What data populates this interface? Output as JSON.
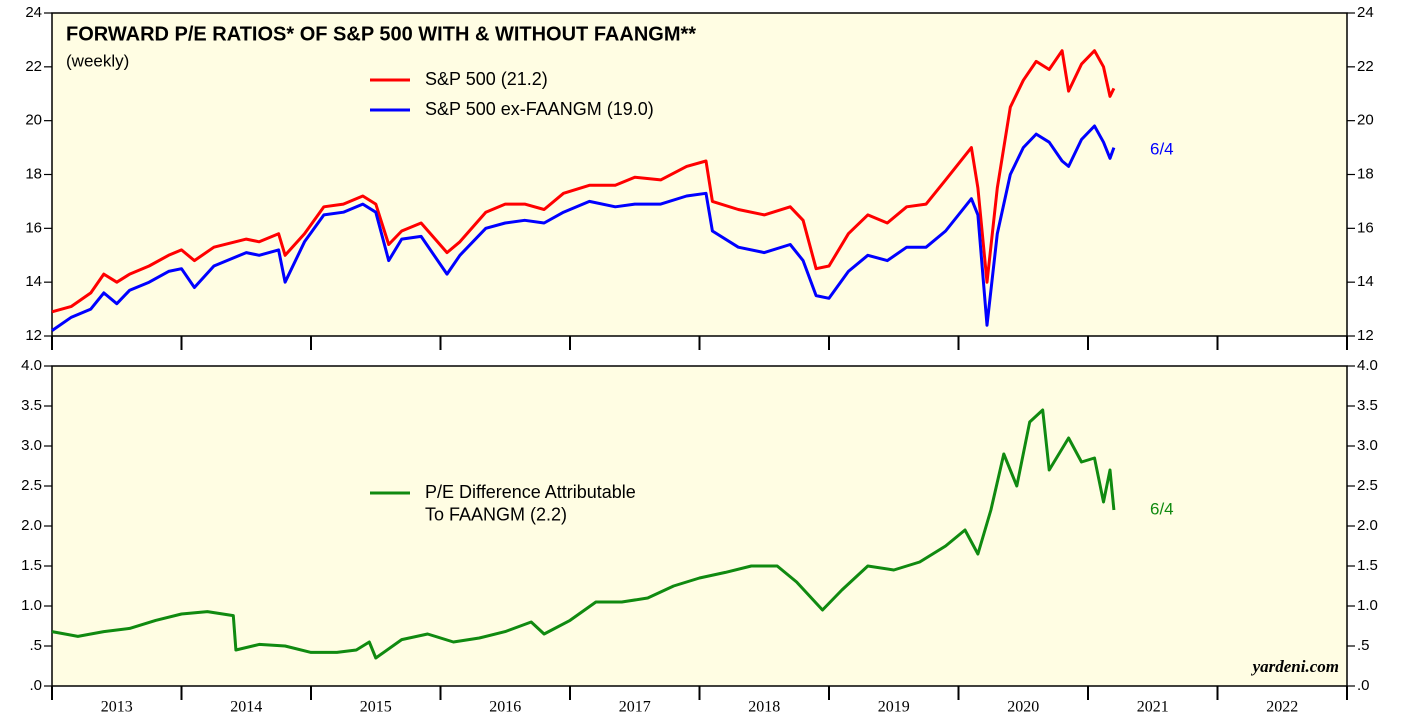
{
  "chart_data": [
    {
      "type": "line",
      "title": "FORWARD P/E RATIOS* OF S&P 500 WITH & WITHOUT FAANGM**",
      "subtitle": "(weekly)",
      "x": [
        2013.0,
        2013.15,
        2013.3,
        2013.4,
        2013.5,
        2013.6,
        2013.75,
        2013.9,
        2014.0,
        2014.1,
        2014.25,
        2014.5,
        2014.6,
        2014.75,
        2014.8,
        2014.95,
        2015.1,
        2015.25,
        2015.4,
        2015.5,
        2015.6,
        2015.7,
        2015.85,
        2016.05,
        2016.15,
        2016.35,
        2016.5,
        2016.65,
        2016.8,
        2016.95,
        2017.15,
        2017.35,
        2017.5,
        2017.7,
        2017.9,
        2018.05,
        2018.1,
        2018.3,
        2018.5,
        2018.7,
        2018.8,
        2018.9,
        2019.0,
        2019.15,
        2019.3,
        2019.45,
        2019.6,
        2019.75,
        2019.9,
        2020.1,
        2020.15,
        2020.22,
        2020.3,
        2020.4,
        2020.5,
        2020.6,
        2020.7,
        2020.8,
        2020.85,
        2020.95,
        2021.05,
        2021.12,
        2021.17,
        2021.2
      ],
      "series": [
        {
          "name": "S&P 500 (21.2)",
          "color": "#ff0000",
          "values": [
            12.9,
            13.1,
            13.6,
            14.3,
            14.0,
            14.3,
            14.6,
            15.0,
            15.2,
            14.8,
            15.3,
            15.6,
            15.5,
            15.8,
            15.0,
            15.8,
            16.8,
            16.9,
            17.2,
            16.9,
            15.4,
            15.9,
            16.2,
            15.1,
            15.5,
            16.6,
            16.9,
            16.9,
            16.7,
            17.3,
            17.6,
            17.6,
            17.9,
            17.8,
            18.3,
            18.5,
            17.0,
            16.7,
            16.5,
            16.8,
            16.3,
            14.5,
            14.6,
            15.8,
            16.5,
            16.2,
            16.8,
            16.9,
            17.8,
            19.0,
            17.5,
            14.0,
            17.5,
            20.5,
            21.5,
            22.2,
            21.9,
            22.6,
            21.1,
            22.1,
            22.6,
            22.0,
            20.9,
            21.2
          ]
        },
        {
          "name": "S&P 500 ex-FAANGM (19.0)",
          "color": "#0000ff",
          "values": [
            12.2,
            12.7,
            13.0,
            13.6,
            13.2,
            13.7,
            14.0,
            14.4,
            14.5,
            13.8,
            14.6,
            15.1,
            15.0,
            15.2,
            14.0,
            15.5,
            16.5,
            16.6,
            16.9,
            16.6,
            14.8,
            15.6,
            15.7,
            14.3,
            15.0,
            16.0,
            16.2,
            16.3,
            16.2,
            16.6,
            17.0,
            16.8,
            16.9,
            16.9,
            17.2,
            17.3,
            15.9,
            15.3,
            15.1,
            15.4,
            14.8,
            13.5,
            13.4,
            14.4,
            15.0,
            14.8,
            15.3,
            15.3,
            15.9,
            17.1,
            16.5,
            12.4,
            15.8,
            18.0,
            19.0,
            19.5,
            19.2,
            18.5,
            18.3,
            19.3,
            19.8,
            19.2,
            18.6,
            19.0
          ]
        }
      ],
      "annotation": "6/4",
      "xlim": [
        2013,
        2023
      ],
      "xticks": [
        2013,
        2014,
        2015,
        2016,
        2017,
        2018,
        2019,
        2020,
        2021,
        2022,
        2023
      ],
      "ylim": [
        12,
        24
      ],
      "yticks": [
        12,
        14,
        16,
        18,
        20,
        22,
        24
      ],
      "background": "#fffde3"
    },
    {
      "type": "line",
      "x": [
        2013.0,
        2013.2,
        2013.4,
        2013.6,
        2013.8,
        2014.0,
        2014.2,
        2014.4,
        2014.42,
        2014.6,
        2014.8,
        2015.0,
        2015.2,
        2015.35,
        2015.45,
        2015.5,
        2015.7,
        2015.9,
        2016.1,
        2016.3,
        2016.5,
        2016.7,
        2016.8,
        2017.0,
        2017.2,
        2017.4,
        2017.6,
        2017.8,
        2018.0,
        2018.2,
        2018.4,
        2018.6,
        2018.75,
        2018.95,
        2019.1,
        2019.3,
        2019.5,
        2019.7,
        2019.9,
        2020.05,
        2020.15,
        2020.25,
        2020.35,
        2020.45,
        2020.55,
        2020.65,
        2020.7,
        2020.85,
        2020.95,
        2021.05,
        2021.12,
        2021.17,
        2021.2
      ],
      "series": [
        {
          "name": "P/E Difference Attributable\nTo FAANGM (2.2)",
          "color": "#108a10",
          "values": [
            0.68,
            0.62,
            0.68,
            0.72,
            0.82,
            0.9,
            0.93,
            0.88,
            0.45,
            0.52,
            0.5,
            0.42,
            0.42,
            0.45,
            0.55,
            0.35,
            0.58,
            0.65,
            0.55,
            0.6,
            0.68,
            0.8,
            0.65,
            0.82,
            1.05,
            1.05,
            1.1,
            1.25,
            1.35,
            1.42,
            1.5,
            1.5,
            1.3,
            0.95,
            1.2,
            1.5,
            1.45,
            1.55,
            1.75,
            1.95,
            1.65,
            2.2,
            2.9,
            2.5,
            3.3,
            3.45,
            2.7,
            3.1,
            2.8,
            2.85,
            2.3,
            2.7,
            2.2
          ]
        }
      ],
      "annotation": "6/4",
      "source": "yardeni.com",
      "xlim": [
        2013,
        2023
      ],
      "xticks": [
        2013,
        2014,
        2015,
        2016,
        2017,
        2018,
        2019,
        2020,
        2021,
        2022,
        2023
      ],
      "x_labels": [
        "2013",
        "2014",
        "2015",
        "2016",
        "2017",
        "2018",
        "2019",
        "2020",
        "2021",
        "2022"
      ],
      "ylim": [
        0,
        4
      ],
      "yticks": [
        {
          "value": 0,
          "label": ".0"
        },
        {
          "value": 0.5,
          "label": ".5"
        },
        {
          "value": 1,
          "label": "1.0"
        },
        {
          "value": 1.5,
          "label": "1.5"
        },
        {
          "value": 2,
          "label": "2.0"
        },
        {
          "value": 2.5,
          "label": "2.5"
        },
        {
          "value": 3,
          "label": "3.0"
        },
        {
          "value": 3.5,
          "label": "3.5"
        },
        {
          "value": 4,
          "label": "4.0"
        }
      ],
      "background": "#fffde3"
    }
  ]
}
